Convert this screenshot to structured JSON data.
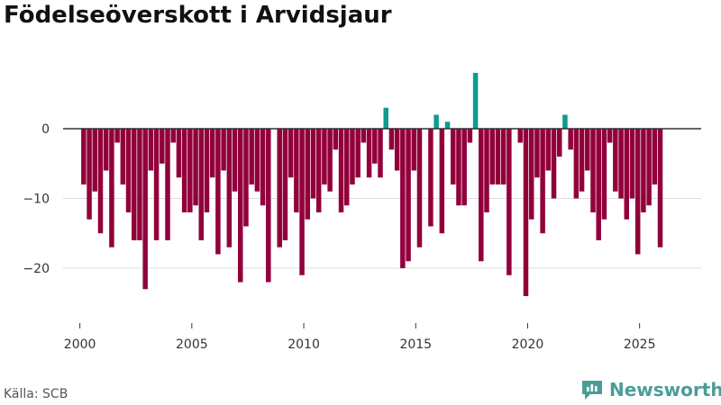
{
  "title": "Födelseöverskott i Arvidsjaur",
  "source": "Källa: SCB",
  "brand": {
    "name": "Newsworthy",
    "icon": "newsworthy-logo-icon",
    "color": "#4a9e96"
  },
  "chart_data": {
    "type": "bar",
    "title": "Födelseöverskott i Arvidsjaur",
    "xlabel": "",
    "ylabel": "",
    "xlim": [
      1999.25,
      2027.75
    ],
    "ylim": [
      -25.5,
      9.5
    ],
    "x_ticks": [
      2000,
      2005,
      2010,
      2015,
      2020,
      2025
    ],
    "y_ticks": [
      0,
      -10,
      -20
    ],
    "y_tick_labels": [
      "0",
      "−10",
      "−20"
    ],
    "grid": true,
    "legend": "none",
    "colors": {
      "negative": "#92003b",
      "positive": "#0f9b8e",
      "zero_line": "#333333",
      "grid": "#dddddd"
    },
    "x": [
      2000.17,
      2000.42,
      2000.67,
      2000.92,
      2001.17,
      2001.42,
      2001.67,
      2001.92,
      2002.17,
      2002.42,
      2002.67,
      2002.92,
      2003.17,
      2003.42,
      2003.67,
      2003.92,
      2004.17,
      2004.42,
      2004.67,
      2004.92,
      2005.17,
      2005.42,
      2005.67,
      2005.92,
      2006.17,
      2006.42,
      2006.67,
      2006.92,
      2007.17,
      2007.42,
      2007.67,
      2007.92,
      2008.17,
      2008.42,
      2008.67,
      2008.92,
      2009.17,
      2009.42,
      2009.67,
      2009.92,
      2010.17,
      2010.42,
      2010.67,
      2010.92,
      2011.17,
      2011.42,
      2011.67,
      2011.92,
      2012.17,
      2012.42,
      2012.67,
      2012.92,
      2013.17,
      2013.42,
      2013.67,
      2013.92,
      2014.17,
      2014.42,
      2014.67,
      2014.92,
      2015.17,
      2015.42,
      2015.67,
      2015.92,
      2016.17,
      2016.42,
      2016.67,
      2016.92,
      2017.17,
      2017.42,
      2017.67,
      2017.92,
      2018.17,
      2018.42,
      2018.67,
      2018.92,
      2019.17,
      2019.42,
      2019.67,
      2019.92,
      2020.17,
      2020.42,
      2020.67,
      2020.92,
      2021.17,
      2021.42,
      2021.67,
      2021.92,
      2022.17,
      2022.42,
      2022.67,
      2022.92,
      2023.17,
      2023.42,
      2023.67,
      2023.92,
      2024.17,
      2024.42,
      2024.67,
      2024.92,
      2025.17,
      2025.42,
      2025.67,
      2025.92
    ],
    "values": [
      -8,
      -13,
      -9,
      -15,
      -6,
      -17,
      -2,
      -8,
      -12,
      -16,
      -16,
      -23,
      -6,
      -16,
      -5,
      -16,
      -2,
      -7,
      -12,
      -12,
      -11,
      -16,
      -12,
      -7,
      -18,
      -6,
      -17,
      -9,
      -22,
      -14,
      -8,
      -9,
      -11,
      -22,
      0,
      -17,
      -16,
      -7,
      -12,
      -21,
      -13,
      -10,
      -12,
      -8,
      -9,
      -3,
      -12,
      -11,
      -8,
      -7,
      -2,
      -7,
      -5,
      -7,
      3,
      -3,
      -6,
      -20,
      -19,
      -6,
      -17,
      0,
      -14,
      2,
      -15,
      1,
      -8,
      -11,
      -11,
      -2,
      8,
      -19,
      -12,
      -8,
      -8,
      -8,
      -21,
      0,
      -2,
      -24,
      -13,
      -7,
      -15,
      -6,
      -10,
      -4,
      2,
      -3,
      -10,
      -9,
      -6,
      -12,
      -16,
      -13,
      -2,
      -9,
      -10,
      -13,
      -10,
      -18,
      -12,
      -11,
      -8,
      -17
    ]
  }
}
